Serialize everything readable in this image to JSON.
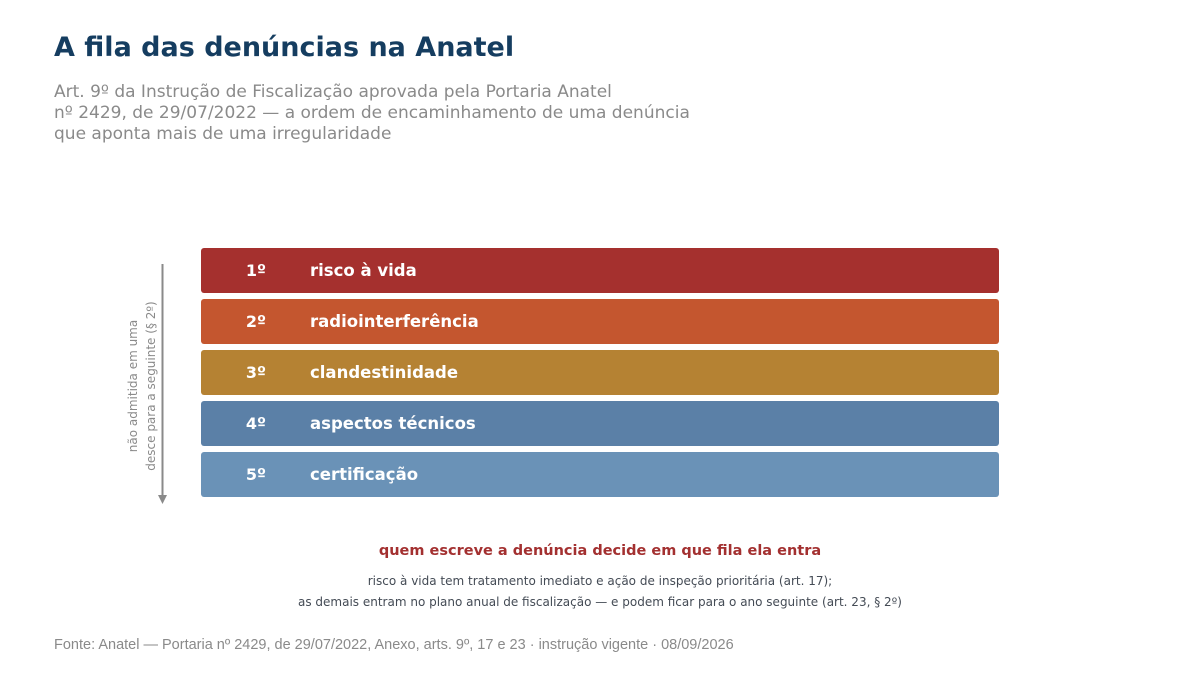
{
  "header": {
    "title": "A fila das denúncias na Anatel",
    "subtitle_lines": [
      "Art. 9º da Instrução de Fiscalização aprovada pela Portaria Anatel",
      "nº 2429, de 29/07/2022 — a ordem de encaminhamento de uma denúncia",
      "que aponta mais de uma irregularidade"
    ]
  },
  "queue": {
    "side_note_lines": [
      "não admitida em uma",
      "desce para a seguinte (§ 2º)"
    ],
    "arrow_icon": "arrow-down-icon",
    "items": [
      {
        "rank": "1º",
        "label": "risco à vida",
        "color": "#a5302e"
      },
      {
        "rank": "2º",
        "label": "radiointerferência",
        "color": "#c4562f"
      },
      {
        "rank": "3º",
        "label": "clandestinidade",
        "color": "#b58233"
      },
      {
        "rank": "4º",
        "label": "aspectos técnicos",
        "color": "#5b80a7"
      },
      {
        "rank": "5º",
        "label": "certificação",
        "color": "#6a92b7"
      }
    ]
  },
  "footer": {
    "emphasis": "quem escreve a denúncia decide em que fila ela entra",
    "note_lines": [
      "risco à vida tem tratamento imediato e ação de inspeção prioritária (art. 17);",
      "as demais entram no plano anual de fiscalização — e podem ficar para o ano seguinte (art. 23, § 2º)"
    ],
    "source": "Fonte: Anatel — Portaria nº 2429, de 29/07/2022, Anexo, arts. 9º, 17 e 23 · instrução vigente · 08/09/2026"
  }
}
